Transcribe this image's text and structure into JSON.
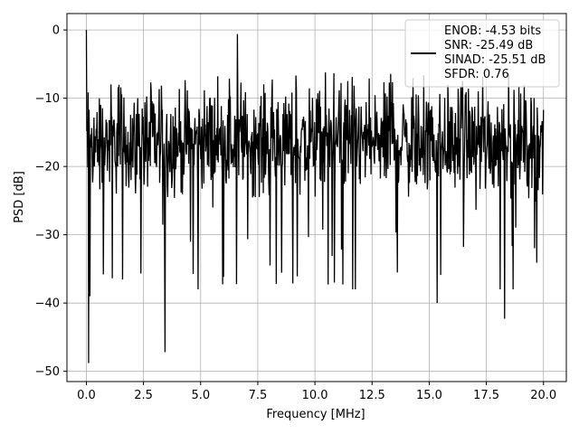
{
  "chart_data": {
    "type": "line",
    "xlabel": "Frequency [MHz]",
    "ylabel": "PSD [dB]",
    "xlim": [
      -0.85,
      21.0
    ],
    "ylim": [
      -51.5,
      2.4
    ],
    "x_ticks": [
      0.0,
      2.5,
      5.0,
      7.5,
      10.0,
      12.5,
      15.0,
      17.5,
      20.0
    ],
    "x_tick_labels": [
      "0.0",
      "2.5",
      "5.0",
      "7.5",
      "10.0",
      "12.5",
      "15.0",
      "17.5",
      "20.0"
    ],
    "y_ticks": [
      0,
      -10,
      -20,
      -30,
      -40,
      -50
    ],
    "y_tick_labels": [
      "0",
      "−10",
      "−20",
      "−30",
      "−40",
      "−50"
    ],
    "grid": true,
    "legend_position": "top-right",
    "legend_entries": [
      "ENOB: -4.53 bits",
      "SNR: -25.49 dB",
      "SINAD: -25.51 dB",
      "SFDR: 0.76"
    ],
    "line_color": "#000000",
    "series": [
      {
        "x_start": 0.0,
        "x_end": 20.0,
        "num_points": 1024,
        "y_mean": -16.5,
        "y_min_observed": -48.8,
        "y_max_observed": 0.0,
        "notable_points": [
          {
            "x": 0.0,
            "y": 0.0
          },
          {
            "x": 0.1,
            "y": -48.8
          },
          {
            "x": 0.15,
            "y": -39.0
          },
          {
            "x": 3.45,
            "y": -47.2
          },
          {
            "x": 6.6,
            "y": -0.6
          },
          {
            "x": 15.35,
            "y": -40.0
          },
          {
            "x": 18.3,
            "y": -42.3
          }
        ]
      }
    ]
  }
}
